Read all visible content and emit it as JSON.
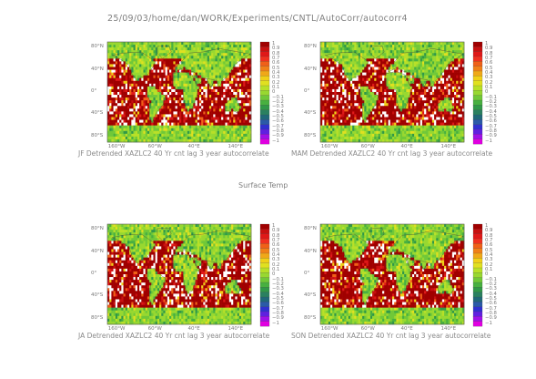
{
  "header": "25/09/03/home/dan/WORK/Experiments/CNTL/AutoCorr/autocorr4",
  "center_title": "Surface Temp",
  "lat_labels": [
    "80°N",
    "40°N",
    "0°",
    "40°S",
    "80°S"
  ],
  "lon_labels": [
    "160°W",
    "60°W",
    "40°E",
    "140°E"
  ],
  "colorbar": {
    "labels": [
      "1",
      "0.9",
      "0.8",
      "0.7",
      "0.6",
      "0.5",
      "0.4",
      "0.3",
      "0.2",
      "0.1",
      "0",
      "−0.1",
      "−0.2",
      "−0.3",
      "−0.4",
      "−0.5",
      "−0.6",
      "−0.7",
      "−0.8",
      "−0.9",
      "−1"
    ],
    "colors": [
      "#a00000",
      "#c81010",
      "#e01818",
      "#f03020",
      "#f06018",
      "#f08018",
      "#f0a818",
      "#f0d018",
      "#e0e020",
      "#b8e028",
      "#98d830",
      "#70c838",
      "#48b040",
      "#309848",
      "#2a8060",
      "#206878",
      "#2a5aa8",
      "#3030d0",
      "#6020e0",
      "#a010e8",
      "#e000e0"
    ]
  },
  "chart_data": [
    {
      "type": "heatmap",
      "title": "JF Detrended XAZLC2 40 Yr cnt lag 3 year autocorrelate",
      "variable": "Surface Temp",
      "zlim": [
        -1,
        1
      ]
    },
    {
      "type": "heatmap",
      "title": "MAM Detrended XAZLC2 40 Yr cnt lag 3 year autocorrelate",
      "variable": "Surface Temp",
      "zlim": [
        -1,
        1
      ]
    },
    {
      "type": "heatmap",
      "title": "JA Detrended XAZLC2 40 Yr cnt lag 3 year autocorrelate",
      "variable": "Surface Temp",
      "zlim": [
        -1,
        1
      ]
    },
    {
      "type": "heatmap",
      "title": "SON Detrended XAZLC2 40 Yr cnt lag 3 year autocorrelate",
      "variable": "Surface Temp",
      "zlim": [
        -1,
        1
      ]
    }
  ]
}
